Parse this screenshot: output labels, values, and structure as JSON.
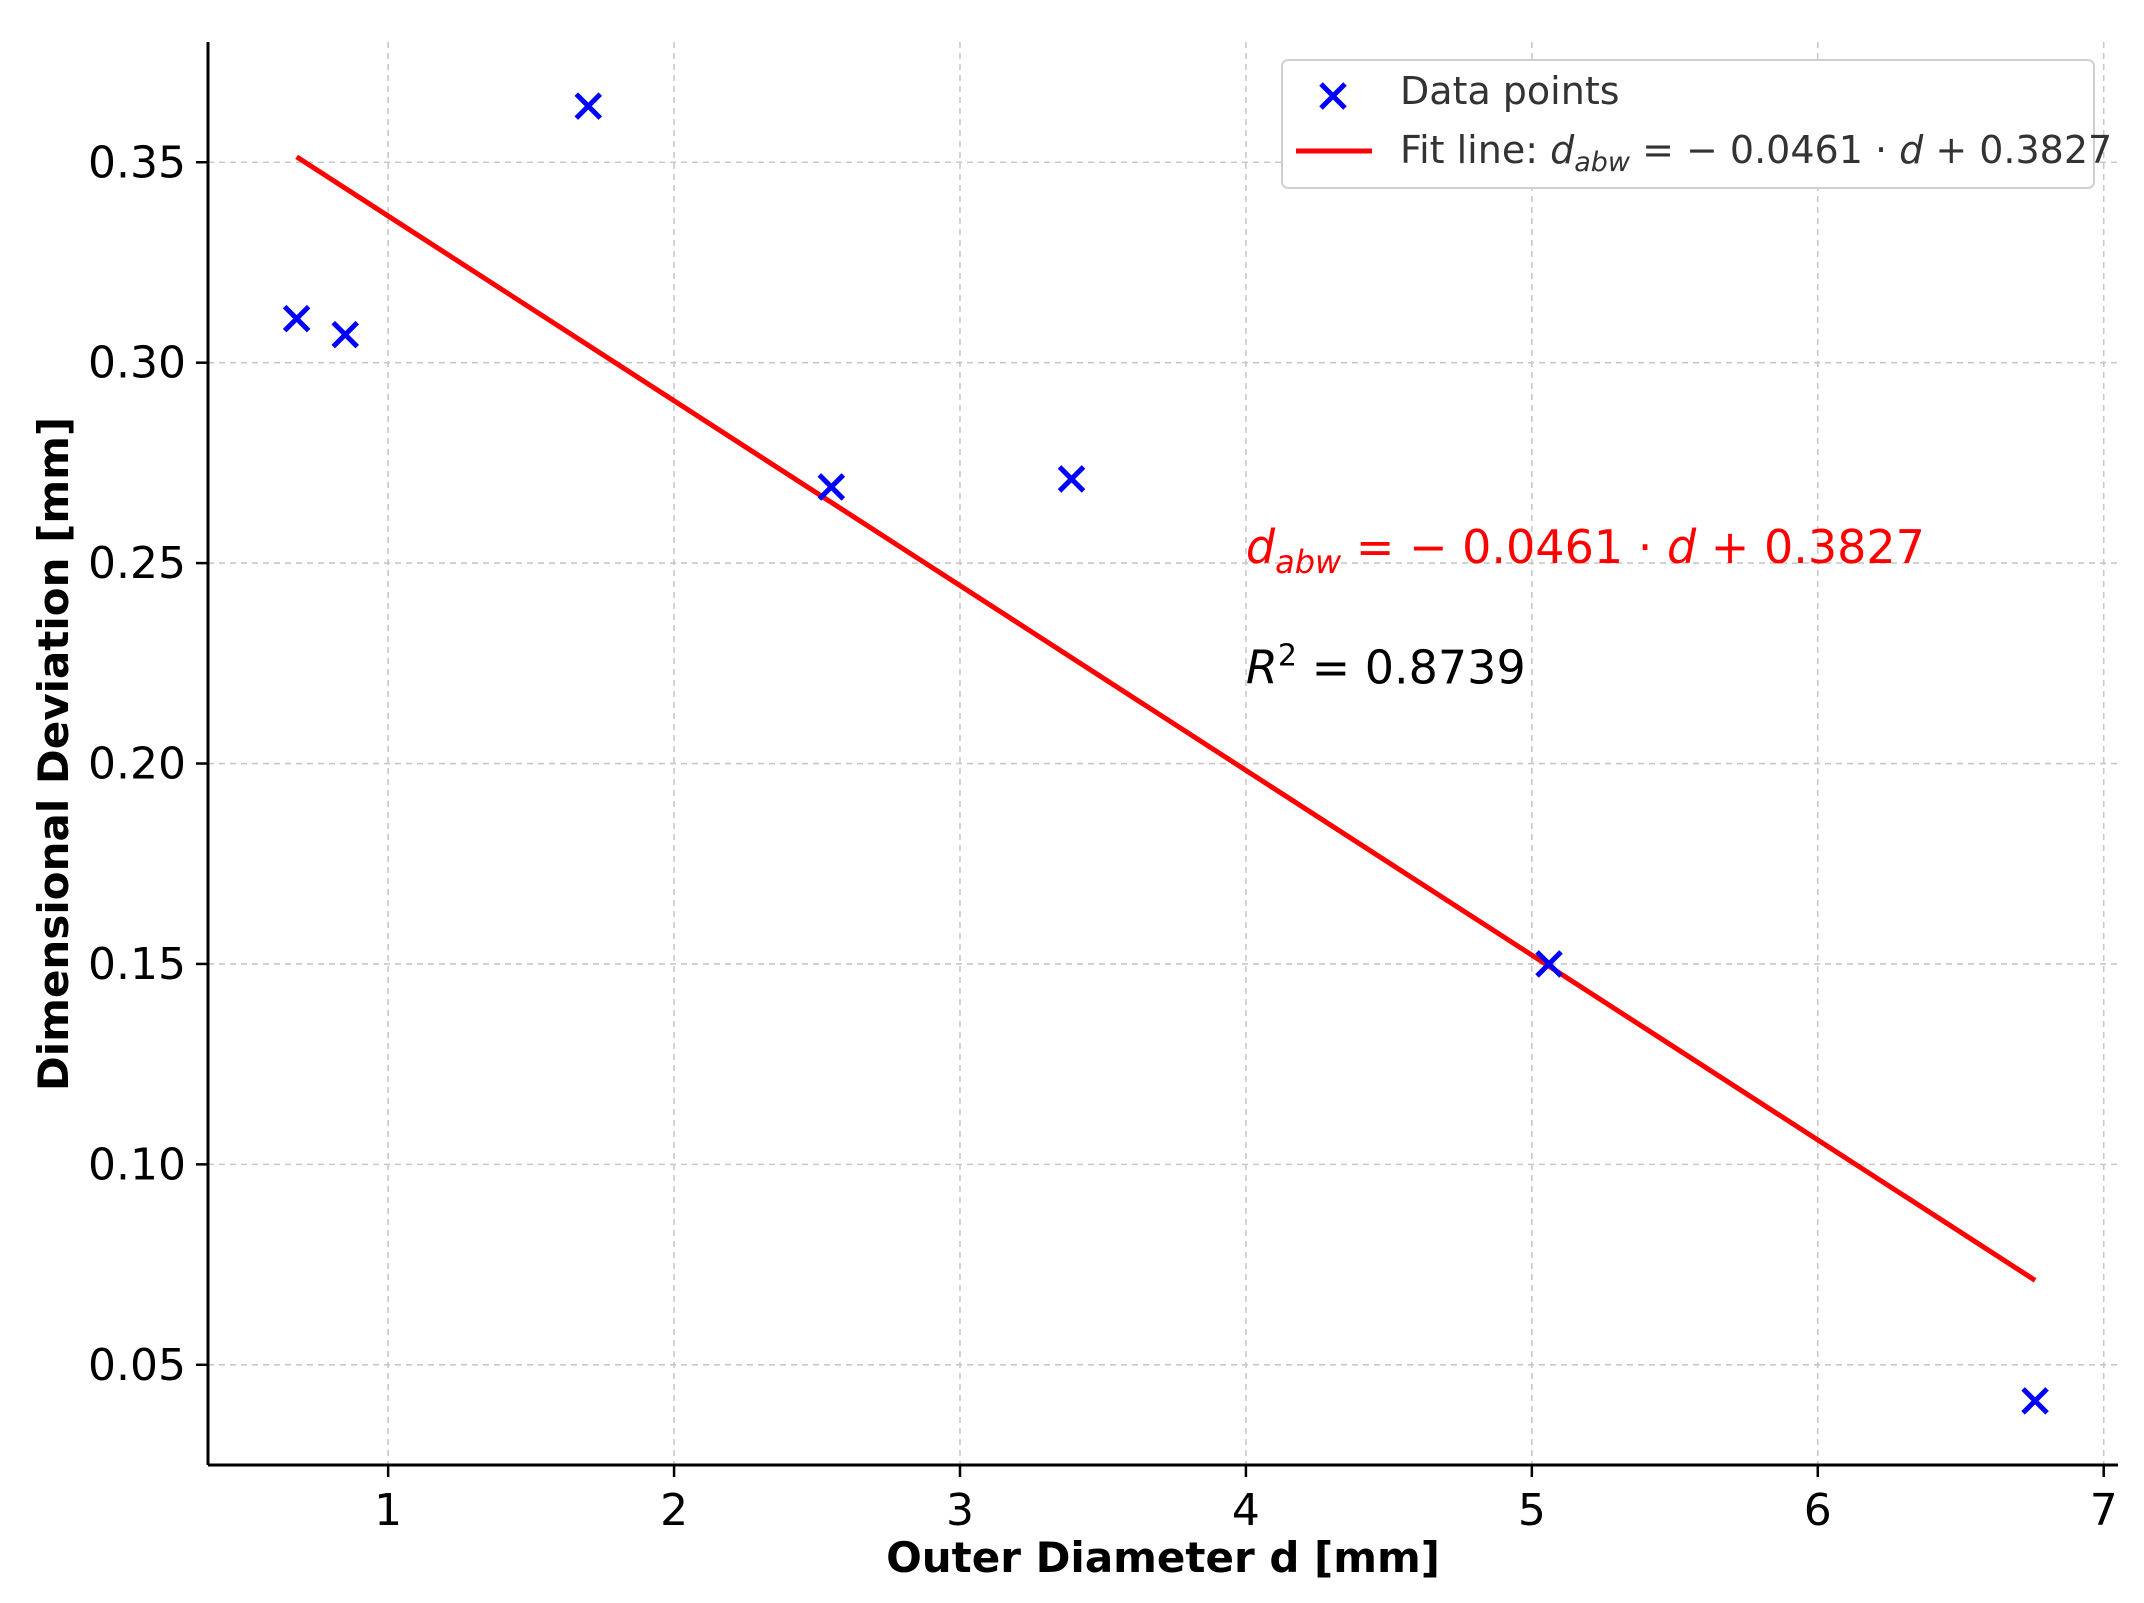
{
  "chart_data": {
    "type": "scatter",
    "xlabel": "Outer Diameter d [mm]",
    "ylabel": "Dimensional Deviation [mm]",
    "xlim": [
      0.37,
      7.05
    ],
    "ylim": [
      0.025,
      0.38
    ],
    "xticks": [
      1,
      2,
      3,
      4,
      5,
      6,
      7
    ],
    "yticks": [
      0.05,
      0.1,
      0.15,
      0.2,
      0.25,
      0.3,
      0.35
    ],
    "xtick_labels": [
      "1",
      "2",
      "3",
      "4",
      "5",
      "6",
      "7"
    ],
    "ytick_labels": [
      "0.05",
      "0.10",
      "0.15",
      "0.20",
      "0.25",
      "0.30",
      "0.35"
    ],
    "grid": true,
    "legend_position": "top-right",
    "series": [
      {
        "name": "Data points",
        "kind": "scatter",
        "marker": "x",
        "color": "#0000ff",
        "x": [
          0.68,
          0.85,
          1.7,
          2.55,
          3.39,
          5.06,
          6.76
        ],
        "y": [
          0.311,
          0.307,
          0.364,
          0.269,
          0.271,
          0.15,
          0.041
        ]
      },
      {
        "name": "Fit line",
        "kind": "line",
        "color": "#ff0000",
        "slope": -0.0461,
        "intercept": 0.3827,
        "x": [
          0.68,
          6.76
        ]
      }
    ],
    "legend": {
      "scatter_label": "Data points",
      "fit_prefix": "Fit line: ",
      "eq_d": "d",
      "eq_sub": "abw",
      "eq_rest": " = − 0.0461 · ",
      "eq_var": "d",
      "eq_tail": " + 0.3827"
    },
    "annotations": {
      "eq_d": "d",
      "eq_sub": "abw",
      "eq_rest": " = − 0.0461 · ",
      "eq_var": "d",
      "eq_tail": " + 0.3827",
      "eq_anchor": [
        4.0,
        0.25
      ],
      "r2_r": "R",
      "r2_sup": "2",
      "r2_rest": " = 0.8739",
      "r2_anchor": [
        4.0,
        0.22
      ]
    }
  }
}
